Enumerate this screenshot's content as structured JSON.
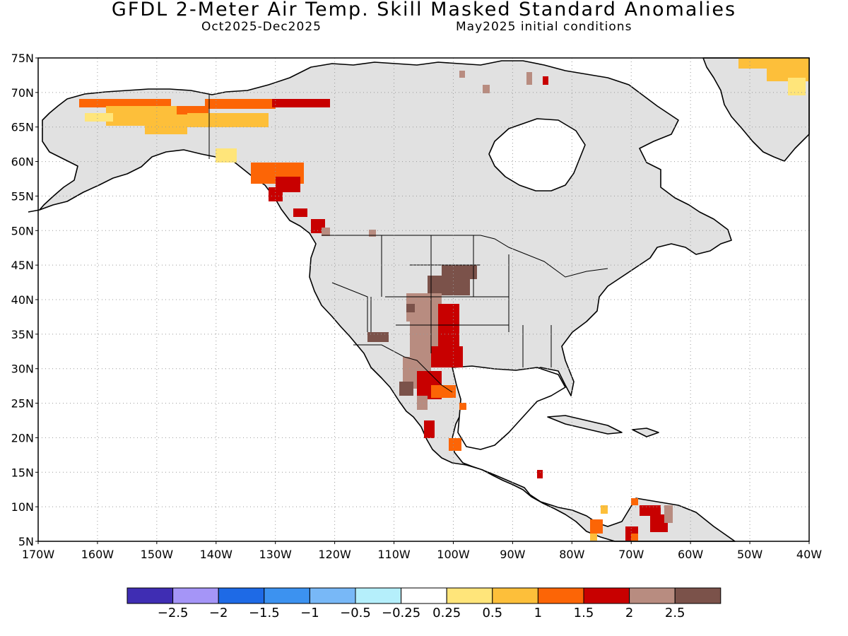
{
  "title": "GFDL 2-Meter Air Temp. Skill Masked Standard Anomalies",
  "subtitle_left": "Oct2025-Dec2025",
  "subtitle_right": "May2025 initial conditions",
  "lat_labels": [
    "75N",
    "70N",
    "65N",
    "60N",
    "55N",
    "50N",
    "45N",
    "40N",
    "35N",
    "30N",
    "25N",
    "20N",
    "15N",
    "10N",
    "5N"
  ],
  "lon_labels": [
    "170W",
    "160W",
    "150W",
    "140W",
    "130W",
    "120W",
    "110W",
    "100W",
    "90W",
    "80W",
    "70W",
    "60W",
    "50W",
    "40W"
  ],
  "map_extent": {
    "lon": [
      -170,
      -40
    ],
    "lat": [
      5,
      75
    ]
  },
  "colorbar": {
    "colors": [
      "#3f2db3",
      "#a595f7",
      "#1e6ae6",
      "#3c92f0",
      "#78b8f7",
      "#b5effb",
      "#ffffff",
      "#ffe57a",
      "#fdbf3a",
      "#fc6506",
      "#c80000",
      "#b88c80",
      "#7b524a"
    ],
    "labels": [
      "-2.5",
      "-2",
      "-1.5",
      "-1",
      "-0.5",
      "-0.25",
      "0.25",
      "0.5",
      "1",
      "1.5",
      "2",
      "2.5"
    ]
  },
  "colors": {
    "land_masked": "#e1e1e1",
    "coast": "#000000",
    "grid": "#999999"
  }
}
